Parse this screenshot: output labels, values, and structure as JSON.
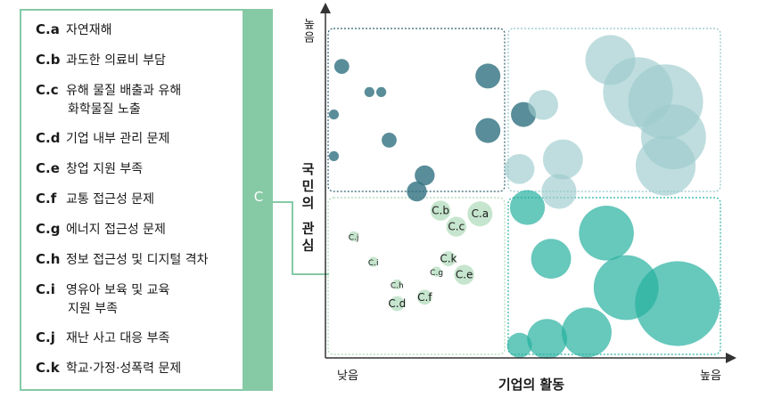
{
  "legend": {
    "group_label": "C",
    "items": [
      {
        "code": "C.a",
        "desc": "자연재해"
      },
      {
        "code": "C.b",
        "desc": "과도한 의료비 부담"
      },
      {
        "code": "C.c",
        "desc": "유해 물질 배출과 유해",
        "desc2": "화학물질 노출"
      },
      {
        "code": "C.d",
        "desc": "기업 내부 관리 문제"
      },
      {
        "code": "C.e",
        "desc": "창업 지원 부족"
      },
      {
        "code": "C.f",
        "desc": "교통 접근성 문제"
      },
      {
        "code": "C.g",
        "desc": "에너지 접근성 문제"
      },
      {
        "code": "C.h",
        "desc": "정보 접근성 및 디지털 격차"
      },
      {
        "code": "C.i",
        "desc": "영유아 보육 및 교육",
        "desc2": "지원 부족"
      },
      {
        "code": "C.j",
        "desc": "재난 사고 대응 부족"
      },
      {
        "code": "C.k",
        "desc": "학교·가정·성폭력 문제"
      }
    ]
  },
  "chart_data": {
    "type": "scatter",
    "xlabel": "기업의 활동",
    "ylabel": "국민의 관심",
    "x_low": "낮음",
    "x_high": "높음",
    "y_high": "높음",
    "xlim": [
      0,
      100
    ],
    "ylim": [
      0,
      100
    ],
    "colors": {
      "dark": "#30707f",
      "light_blue": "#9ccbcc",
      "teal": "#27b0a0",
      "light_green": "#b8dfc2",
      "frame": "#555555"
    },
    "series": [
      {
        "color": "dark",
        "points": [
          {
            "x": 3,
            "y": 89,
            "r": 3
          },
          {
            "x": 10,
            "y": 81,
            "r": 2
          },
          {
            "x": 13,
            "y": 81,
            "r": 2
          },
          {
            "x": 1,
            "y": 74,
            "r": 2
          },
          {
            "x": 1,
            "y": 61,
            "r": 2
          },
          {
            "x": 15,
            "y": 66,
            "r": 3
          },
          {
            "x": 40,
            "y": 86,
            "r": 5
          },
          {
            "x": 49,
            "y": 74,
            "r": 5
          },
          {
            "x": 40,
            "y": 69,
            "r": 5
          },
          {
            "x": 24,
            "y": 55,
            "r": 4
          },
          {
            "x": 22,
            "y": 50,
            "r": 4
          }
        ]
      },
      {
        "color": "light_blue",
        "points": [
          {
            "x": 54,
            "y": 77,
            "r": 6
          },
          {
            "x": 71,
            "y": 91,
            "r": 10
          },
          {
            "x": 78,
            "y": 81,
            "r": 14
          },
          {
            "x": 85,
            "y": 78,
            "r": 15
          },
          {
            "x": 87,
            "y": 67,
            "r": 13
          },
          {
            "x": 85,
            "y": 58,
            "r": 12
          },
          {
            "x": 59,
            "y": 60,
            "r": 8
          },
          {
            "x": 48,
            "y": 57,
            "r": 6
          },
          {
            "x": 58,
            "y": 50,
            "r": 7
          }
        ]
      },
      {
        "color": "teal",
        "points": [
          {
            "x": 50,
            "y": 45,
            "r": 7
          },
          {
            "x": 70,
            "y": 37,
            "r": 11
          },
          {
            "x": 56,
            "y": 29,
            "r": 8
          },
          {
            "x": 75,
            "y": 20,
            "r": 13
          },
          {
            "x": 88,
            "y": 15,
            "r": 17
          },
          {
            "x": 65,
            "y": 6,
            "r": 10
          },
          {
            "x": 55,
            "y": 4,
            "r": 8
          },
          {
            "x": 48,
            "y": 2,
            "r": 5
          }
        ]
      },
      {
        "color": "light_green",
        "points": [
          {
            "x": 38,
            "y": 43,
            "label": "C.a",
            "r": 5
          },
          {
            "x": 28,
            "y": 44,
            "label": "C.b",
            "r": 4
          },
          {
            "x": 32,
            "y": 39,
            "label": "C.c",
            "r": 4
          },
          {
            "x": 17,
            "y": 15,
            "label": "C.d",
            "r": 3
          },
          {
            "x": 34,
            "y": 24,
            "label": "C.e",
            "r": 4
          },
          {
            "x": 24,
            "y": 17,
            "label": "C.f",
            "r": 3
          },
          {
            "x": 27,
            "y": 25,
            "label": "C.g",
            "r": 2
          },
          {
            "x": 30,
            "y": 29,
            "label": "C.k",
            "r": 3
          },
          {
            "x": 17,
            "y": 21,
            "label": "C.h",
            "r": 2
          },
          {
            "x": 11,
            "y": 28,
            "label": "C.i",
            "r": 2
          },
          {
            "x": 6,
            "y": 36,
            "label": "C.j",
            "r": 2
          }
        ]
      }
    ]
  }
}
